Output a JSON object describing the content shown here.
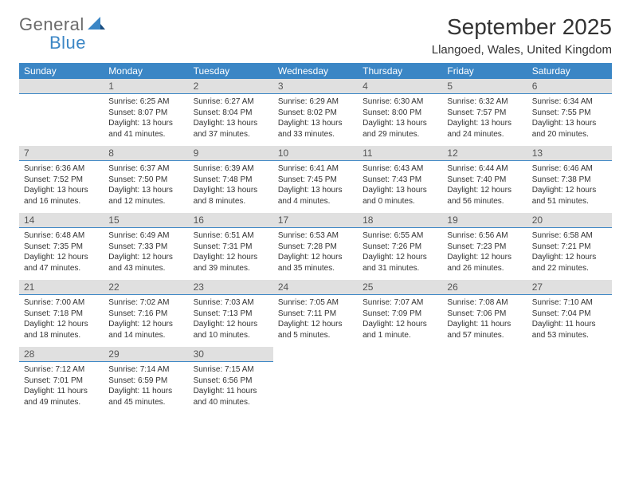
{
  "brand": {
    "word1": "General",
    "word2": "Blue"
  },
  "title": "September 2025",
  "location": "Llangoed, Wales, United Kingdom",
  "theme": {
    "header_bg": "#3b86c5",
    "header_fg": "#ffffff",
    "daynum_bg": "#e0e0e0",
    "daynum_fg": "#555555",
    "divider": "#3b86c5",
    "text": "#333333",
    "logo_gray": "#6b6b6b",
    "logo_blue": "#3b86c5",
    "background": "#ffffff"
  },
  "day_headers": [
    "Sunday",
    "Monday",
    "Tuesday",
    "Wednesday",
    "Thursday",
    "Friday",
    "Saturday"
  ],
  "weeks": [
    [
      null,
      {
        "n": "1",
        "sr": "6:25 AM",
        "ss": "8:07 PM",
        "dl": "13 hours and 41 minutes."
      },
      {
        "n": "2",
        "sr": "6:27 AM",
        "ss": "8:04 PM",
        "dl": "13 hours and 37 minutes."
      },
      {
        "n": "3",
        "sr": "6:29 AM",
        "ss": "8:02 PM",
        "dl": "13 hours and 33 minutes."
      },
      {
        "n": "4",
        "sr": "6:30 AM",
        "ss": "8:00 PM",
        "dl": "13 hours and 29 minutes."
      },
      {
        "n": "5",
        "sr": "6:32 AM",
        "ss": "7:57 PM",
        "dl": "13 hours and 24 minutes."
      },
      {
        "n": "6",
        "sr": "6:34 AM",
        "ss": "7:55 PM",
        "dl": "13 hours and 20 minutes."
      }
    ],
    [
      {
        "n": "7",
        "sr": "6:36 AM",
        "ss": "7:52 PM",
        "dl": "13 hours and 16 minutes."
      },
      {
        "n": "8",
        "sr": "6:37 AM",
        "ss": "7:50 PM",
        "dl": "13 hours and 12 minutes."
      },
      {
        "n": "9",
        "sr": "6:39 AM",
        "ss": "7:48 PM",
        "dl": "13 hours and 8 minutes."
      },
      {
        "n": "10",
        "sr": "6:41 AM",
        "ss": "7:45 PM",
        "dl": "13 hours and 4 minutes."
      },
      {
        "n": "11",
        "sr": "6:43 AM",
        "ss": "7:43 PM",
        "dl": "13 hours and 0 minutes."
      },
      {
        "n": "12",
        "sr": "6:44 AM",
        "ss": "7:40 PM",
        "dl": "12 hours and 56 minutes."
      },
      {
        "n": "13",
        "sr": "6:46 AM",
        "ss": "7:38 PM",
        "dl": "12 hours and 51 minutes."
      }
    ],
    [
      {
        "n": "14",
        "sr": "6:48 AM",
        "ss": "7:35 PM",
        "dl": "12 hours and 47 minutes."
      },
      {
        "n": "15",
        "sr": "6:49 AM",
        "ss": "7:33 PM",
        "dl": "12 hours and 43 minutes."
      },
      {
        "n": "16",
        "sr": "6:51 AM",
        "ss": "7:31 PM",
        "dl": "12 hours and 39 minutes."
      },
      {
        "n": "17",
        "sr": "6:53 AM",
        "ss": "7:28 PM",
        "dl": "12 hours and 35 minutes."
      },
      {
        "n": "18",
        "sr": "6:55 AM",
        "ss": "7:26 PM",
        "dl": "12 hours and 31 minutes."
      },
      {
        "n": "19",
        "sr": "6:56 AM",
        "ss": "7:23 PM",
        "dl": "12 hours and 26 minutes."
      },
      {
        "n": "20",
        "sr": "6:58 AM",
        "ss": "7:21 PM",
        "dl": "12 hours and 22 minutes."
      }
    ],
    [
      {
        "n": "21",
        "sr": "7:00 AM",
        "ss": "7:18 PM",
        "dl": "12 hours and 18 minutes."
      },
      {
        "n": "22",
        "sr": "7:02 AM",
        "ss": "7:16 PM",
        "dl": "12 hours and 14 minutes."
      },
      {
        "n": "23",
        "sr": "7:03 AM",
        "ss": "7:13 PM",
        "dl": "12 hours and 10 minutes."
      },
      {
        "n": "24",
        "sr": "7:05 AM",
        "ss": "7:11 PM",
        "dl": "12 hours and 5 minutes."
      },
      {
        "n": "25",
        "sr": "7:07 AM",
        "ss": "7:09 PM",
        "dl": "12 hours and 1 minute."
      },
      {
        "n": "26",
        "sr": "7:08 AM",
        "ss": "7:06 PM",
        "dl": "11 hours and 57 minutes."
      },
      {
        "n": "27",
        "sr": "7:10 AM",
        "ss": "7:04 PM",
        "dl": "11 hours and 53 minutes."
      }
    ],
    [
      {
        "n": "28",
        "sr": "7:12 AM",
        "ss": "7:01 PM",
        "dl": "11 hours and 49 minutes."
      },
      {
        "n": "29",
        "sr": "7:14 AM",
        "ss": "6:59 PM",
        "dl": "11 hours and 45 minutes."
      },
      {
        "n": "30",
        "sr": "7:15 AM",
        "ss": "6:56 PM",
        "dl": "11 hours and 40 minutes."
      },
      null,
      null,
      null,
      null
    ]
  ],
  "labels": {
    "sunrise": "Sunrise:",
    "sunset": "Sunset:",
    "daylight": "Daylight:"
  }
}
